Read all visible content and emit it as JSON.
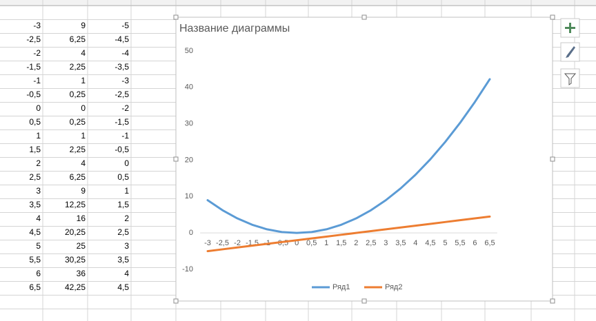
{
  "sheet": {
    "rows": [
      [
        "-3",
        "9",
        "-5"
      ],
      [
        "-2,5",
        "6,25",
        "-4,5"
      ],
      [
        "-2",
        "4",
        "-4"
      ],
      [
        "-1,5",
        "2,25",
        "-3,5"
      ],
      [
        "-1",
        "1",
        "-3"
      ],
      [
        "-0,5",
        "0,25",
        "-2,5"
      ],
      [
        "0",
        "0",
        "-2"
      ],
      [
        "0,5",
        "0,25",
        "-1,5"
      ],
      [
        "1",
        "1",
        "-1"
      ],
      [
        "1,5",
        "2,25",
        "-0,5"
      ],
      [
        "2",
        "4",
        "0"
      ],
      [
        "2,5",
        "6,25",
        "0,5"
      ],
      [
        "3",
        "9",
        "1"
      ],
      [
        "3,5",
        "12,25",
        "1,5"
      ],
      [
        "4",
        "16",
        "2"
      ],
      [
        "4,5",
        "20,25",
        "2,5"
      ],
      [
        "5",
        "25",
        "3"
      ],
      [
        "5,5",
        "30,25",
        "3,5"
      ],
      [
        "6",
        "36",
        "4"
      ],
      [
        "6,5",
        "42,25",
        "4,5"
      ]
    ]
  },
  "chart_data": {
    "type": "line",
    "title": "Название диаграммы",
    "categories": [
      "-3",
      "-2,5",
      "-2",
      "-1,5",
      "-1",
      "-0,5",
      "0",
      "0,5",
      "1",
      "1,5",
      "2",
      "2,5",
      "3",
      "3,5",
      "4",
      "4,5",
      "5",
      "5,5",
      "6",
      "6,5"
    ],
    "series": [
      {
        "name": "Ряд1",
        "color": "#5b9bd5",
        "values": [
          9,
          6.25,
          4,
          2.25,
          1,
          0.25,
          0,
          0.25,
          1,
          2.25,
          4,
          6.25,
          9,
          12.25,
          16,
          20.25,
          25,
          30.25,
          36,
          42.25
        ]
      },
      {
        "name": "Ряд2",
        "color": "#ed7d31",
        "values": [
          -5,
          -4.5,
          -4,
          -3.5,
          -3,
          -2.5,
          -2,
          -1.5,
          -1,
          -0.5,
          0,
          0.5,
          1,
          1.5,
          2,
          2.5,
          3,
          3.5,
          4,
          4.5
        ]
      }
    ],
    "ylim": [
      -10,
      50
    ],
    "yticks": [
      -10,
      0,
      10,
      20,
      30,
      40,
      50
    ],
    "grid": false,
    "legend": "bottom"
  }
}
